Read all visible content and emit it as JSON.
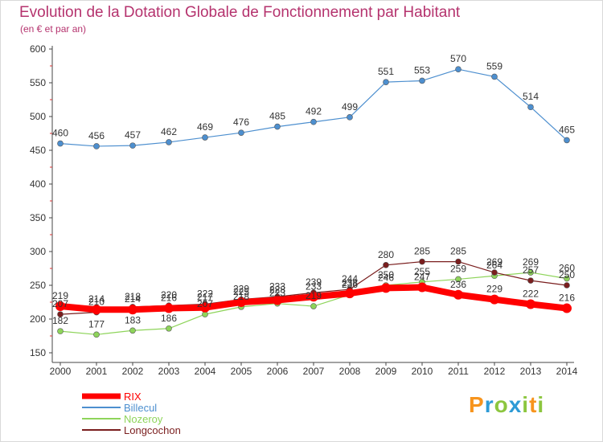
{
  "title": "Evolution de la Dotation Globale de Fonctionnement par Habitant",
  "subtitle": "(en € et par an)",
  "logo": {
    "text": "Proxiti",
    "colors": [
      "#f7941d",
      "#2e9bd6",
      "#8cc63f"
    ]
  },
  "chart_data": {
    "type": "line",
    "x": [
      "2000",
      "2001",
      "2002",
      "2003",
      "2004",
      "2005",
      "2006",
      "2007",
      "2008",
      "2009",
      "2010",
      "2011",
      "2012",
      "2013",
      "2014"
    ],
    "ylim": [
      150,
      600
    ],
    "yticks": [
      150,
      200,
      250,
      300,
      350,
      400,
      450,
      500,
      550,
      600
    ],
    "grid": false,
    "legend_position": "bottom-left",
    "series": [
      {
        "name": "RIX",
        "color": "#ff0000",
        "values": [
          219,
          214,
          214,
          216,
          217,
          225,
          228,
          233,
          238,
          246,
          247,
          236,
          229,
          222,
          216
        ]
      },
      {
        "name": "Billecul",
        "color": "#4d8fcf",
        "values": [
          460,
          456,
          457,
          462,
          469,
          476,
          485,
          492,
          499,
          551,
          553,
          570,
          559,
          514,
          465
        ]
      },
      {
        "name": "Nozeroy",
        "color": "#8ed45a",
        "values": [
          182,
          177,
          183,
          186,
          207,
          218,
          223,
          219,
          236,
          250,
          255,
          259,
          264,
          269,
          260
        ]
      },
      {
        "name": "Longcochon",
        "color": "#7a1e1e",
        "values": [
          207,
          210,
          218,
          220,
          222,
          229,
          233,
          239,
          244,
          280,
          285,
          285,
          269,
          257,
          250
        ]
      }
    ]
  }
}
